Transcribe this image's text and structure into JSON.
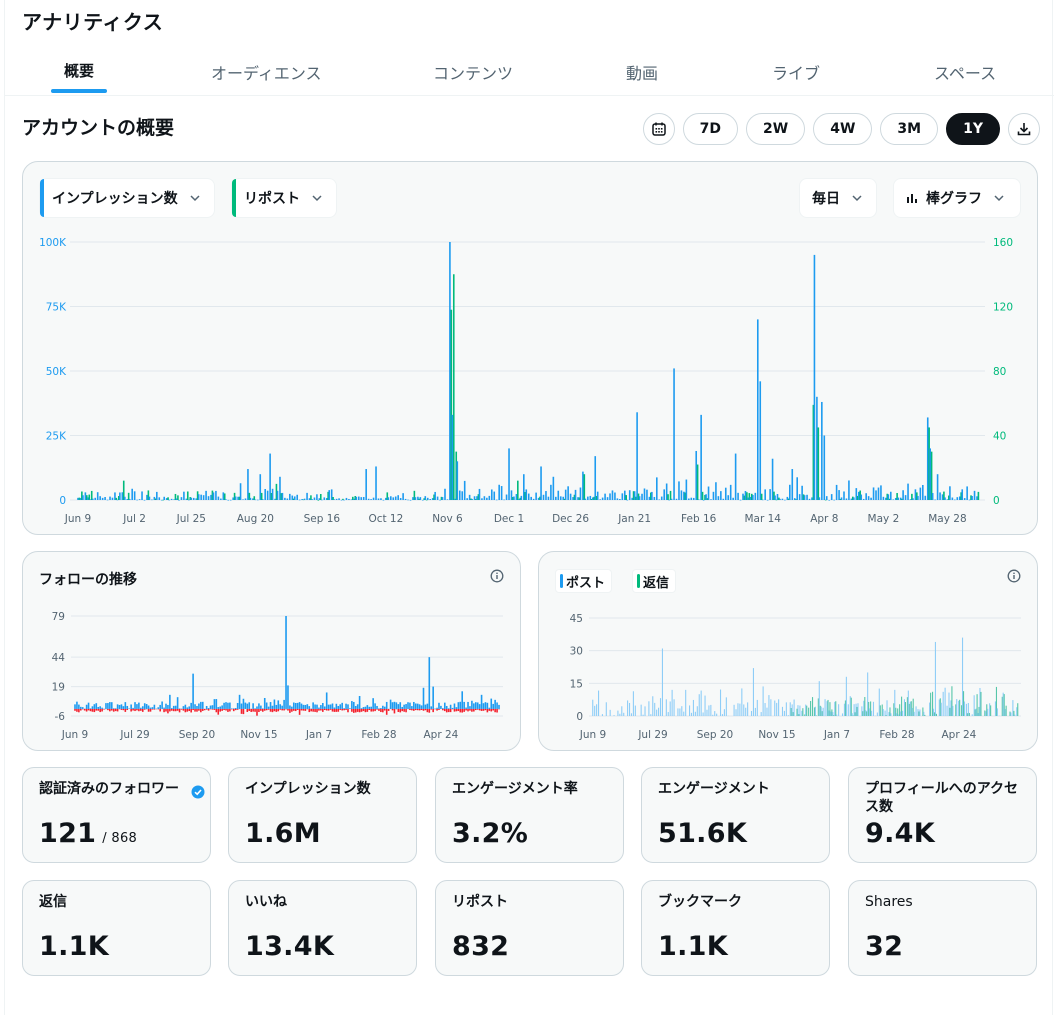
{
  "page": {
    "title": "アナリティクス"
  },
  "tabs": [
    {
      "label": "概要",
      "active": true
    },
    {
      "label": "オーディエンス"
    },
    {
      "label": "コンテンツ"
    },
    {
      "label": "動画"
    },
    {
      "label": "ライブ"
    },
    {
      "label": "スペース"
    }
  ],
  "overview": {
    "title": "アカウントの概要",
    "ranges": [
      "7D",
      "2W",
      "4W",
      "3M",
      "1Y"
    ],
    "active_range": "1Y",
    "icons": {
      "calendar": "calendar-icon",
      "download": "download-icon"
    }
  },
  "main_chart": {
    "metric_primary": "インプレッション数",
    "metric_secondary": "リポスト",
    "interval": "毎日",
    "chart_type_label": "棒グラフ",
    "colors": {
      "primary": "#1d9bf0",
      "secondary": "#00ba7c"
    }
  },
  "follow_chart": {
    "title": "フォローの推移"
  },
  "posts_chart": {
    "legend_posts": "ポスト",
    "legend_replies": "返信"
  },
  "chart_data": [
    {
      "type": "bar",
      "x_ticks": [
        "Jun 9",
        "Jul 2",
        "Jul 25",
        "Aug 20",
        "Sep 16",
        "Oct 12",
        "Nov 6",
        "Dec 1",
        "Dec 26",
        "Jan 21",
        "Feb 16",
        "Mar 14",
        "Apr 8",
        "May 2",
        "May 28"
      ],
      "y_left_ticks": [
        "0",
        "25K",
        "50K",
        "75K",
        "100K"
      ],
      "y_right_ticks": [
        "0",
        "40",
        "80",
        "120",
        "160"
      ],
      "ylim_left": [
        0,
        100000
      ],
      "ylim_right": [
        0,
        160
      ],
      "series": [
        {
          "name": "インプレッション数",
          "axis": "left",
          "color": "#1d9bf0",
          "approx_peaks": [
            {
              "x": "Nov 8",
              "y": 100000
            },
            {
              "x": "Apr 6",
              "y": 95000
            },
            {
              "x": "Mar 16",
              "y": 70000
            },
            {
              "x": "Feb 12",
              "y": 51000
            },
            {
              "x": "Apr 10",
              "y": 38000
            },
            {
              "x": "Jan 20",
              "y": 34000
            },
            {
              "x": "Feb 23",
              "y": 33000
            },
            {
              "x": "Mar 18",
              "y": 46000
            },
            {
              "x": "May 30",
              "y": 32000
            },
            {
              "x": "Dec 2",
              "y": 20000
            },
            {
              "x": "Aug 30",
              "y": 18000
            }
          ]
        },
        {
          "name": "リポスト",
          "axis": "right",
          "color": "#00ba7c",
          "approx_peaks": [
            {
              "x": "Nov 9",
              "y": 140
            },
            {
              "x": "Nov 8",
              "y": 118
            },
            {
              "x": "Apr 6",
              "y": 59
            },
            {
              "x": "Apr 9",
              "y": 45
            },
            {
              "x": "May 30",
              "y": 45
            },
            {
              "x": "Feb 23",
              "y": 22
            }
          ]
        }
      ]
    },
    {
      "type": "bar",
      "x_ticks": [
        "Jun 9",
        "Jul 29",
        "Sep 20",
        "Nov 15",
        "Jan 7",
        "Feb 28",
        "Apr 24"
      ],
      "y_ticks": [
        "-6",
        "19",
        "44",
        "79"
      ],
      "ylim": [
        -6,
        79
      ],
      "series": [
        {
          "name": "follows",
          "color": "#1d9bf0",
          "approx_peaks": [
            {
              "x": "Nov 8",
              "y": 79
            },
            {
              "x": "Apr 30",
              "y": 44
            },
            {
              "x": "Sep 6",
              "y": 30
            },
            {
              "x": "Apr 20",
              "y": 19
            }
          ]
        },
        {
          "name": "unfollows",
          "color": "#f4212e",
          "approx_range": [
            -6,
            0
          ]
        }
      ]
    },
    {
      "type": "bar",
      "x_ticks": [
        "Jun 9",
        "Jul 29",
        "Sep 20",
        "Nov 15",
        "Jan 7",
        "Feb 28",
        "Apr 24"
      ],
      "y_ticks": [
        "0",
        "15",
        "30",
        "45"
      ],
      "ylim": [
        0,
        45
      ],
      "series": [
        {
          "name": "ポスト",
          "color": "#1d9bf0",
          "approx_peaks": [
            {
              "x": "Aug 1",
              "y": 31
            },
            {
              "x": "Apr 28",
              "y": 36
            },
            {
              "x": "Apr 15",
              "y": 35
            }
          ]
        },
        {
          "name": "返信",
          "color": "#00ba7c",
          "approx_peaks": [
            {
              "x": "Apr 15",
              "y": 35
            },
            {
              "x": "Apr 28",
              "y": 24
            }
          ]
        }
      ]
    }
  ],
  "stats": [
    {
      "label": "認証済みのフォロワー",
      "value": "121",
      "sub": "/ 868",
      "verified": true
    },
    {
      "label": "インプレッション数",
      "value": "1.6M"
    },
    {
      "label": "エンゲージメント率",
      "value": "3.2%"
    },
    {
      "label": "エンゲージメント",
      "value": "51.6K"
    },
    {
      "label": "プロフィールへのアクセス数",
      "value": "9.4K"
    },
    {
      "label": "返信",
      "value": "1.1K"
    },
    {
      "label": "いいね",
      "value": "13.4K"
    },
    {
      "label": "リポスト",
      "value": "832"
    },
    {
      "label": "ブックマーク",
      "value": "1.1K"
    },
    {
      "label": "Shares",
      "value": "32",
      "plain": true
    }
  ]
}
